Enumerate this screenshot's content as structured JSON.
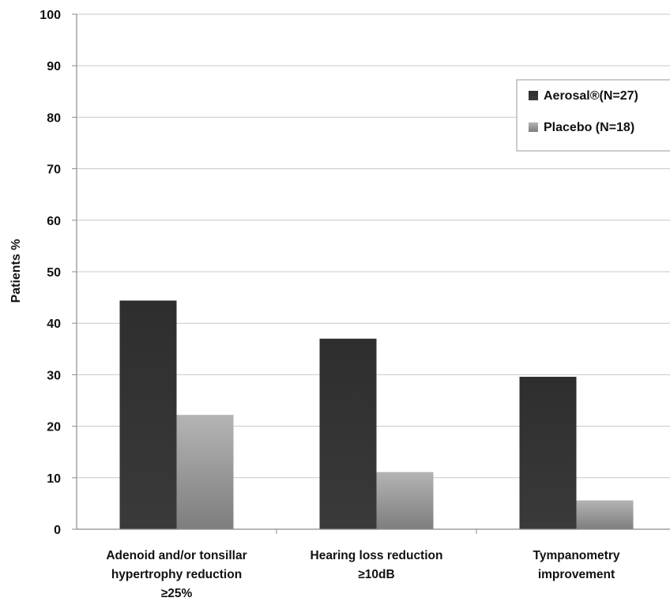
{
  "chart_data": {
    "type": "bar",
    "title": "",
    "xlabel": "",
    "ylabel": "Patients %",
    "ylim": [
      0,
      100
    ],
    "yticks": [
      0,
      10,
      20,
      30,
      40,
      50,
      60,
      70,
      80,
      90,
      100
    ],
    "grid": true,
    "legend_position": "top-right",
    "categories": [
      [
        "Adenoid and/or tonsillar",
        "hypertrophy reduction",
        "≥25%"
      ],
      [
        "Hearing loss reduction",
        "≥10dB"
      ],
      [
        "Tympanometry",
        "improvement"
      ]
    ],
    "series": [
      {
        "name": "Aerosal®(N=27)",
        "values": [
          44.4,
          37.0,
          29.6
        ],
        "color_top": "#2e2e2e",
        "color_bottom": "#3a3a3a"
      },
      {
        "name": "Placebo (N=18)",
        "values": [
          22.2,
          11.1,
          5.6
        ],
        "color_top": "#b4b4b4",
        "color_bottom": "#7e7e7e"
      }
    ]
  }
}
